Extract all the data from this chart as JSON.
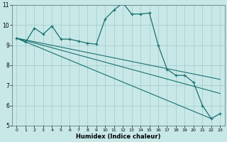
{
  "xlabel": "Humidex (Indice chaleur)",
  "background_color": "#c8e8e8",
  "grid_color": "#a0c8c8",
  "line_color": "#1a7070",
  "xlim": [
    -0.5,
    23.5
  ],
  "ylim": [
    5,
    11
  ],
  "xticks": [
    0,
    1,
    2,
    3,
    4,
    5,
    6,
    7,
    8,
    9,
    10,
    11,
    12,
    13,
    14,
    15,
    16,
    17,
    18,
    19,
    20,
    21,
    22,
    23
  ],
  "yticks": [
    5,
    6,
    7,
    8,
    9,
    10,
    11
  ],
  "main_line": {
    "x": [
      0,
      1,
      2,
      3,
      4,
      5,
      6,
      7,
      8,
      9,
      10,
      11,
      12,
      13,
      14,
      15,
      16,
      17,
      18,
      19,
      20,
      21,
      22,
      23
    ],
    "y": [
      9.35,
      9.15,
      9.85,
      9.55,
      9.95,
      9.3,
      9.3,
      9.2,
      9.1,
      9.05,
      10.3,
      10.75,
      11.1,
      10.55,
      10.55,
      10.6,
      9.0,
      7.8,
      7.5,
      7.5,
      7.15,
      6.0,
      5.35,
      5.6
    ]
  },
  "trend_lines": [
    {
      "x0": 0,
      "y0": 9.35,
      "x1": 22,
      "y1": 5.35
    },
    {
      "x0": 0,
      "y0": 9.35,
      "x1": 23,
      "y1": 6.6
    },
    {
      "x0": 0,
      "y0": 9.35,
      "x1": 23,
      "y1": 7.3
    }
  ]
}
